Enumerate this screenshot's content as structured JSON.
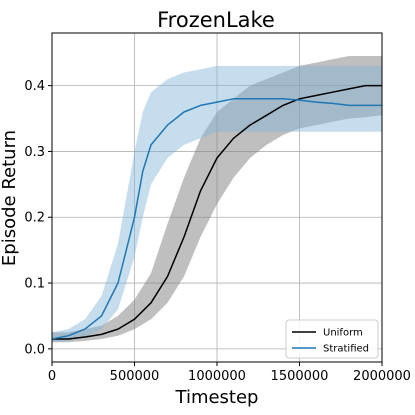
{
  "chart_data": {
    "type": "line",
    "title": "FrozenLake",
    "xlabel": "Timestep",
    "ylabel": "Episode Return",
    "xlim": [
      0,
      2000000
    ],
    "ylim": [
      -0.02,
      0.48
    ],
    "x_ticks": [
      0,
      500000,
      1000000,
      1500000,
      2000000
    ],
    "x_tick_labels": [
      "0",
      "500000",
      "1000000",
      "1500000",
      "2000000"
    ],
    "y_ticks": [
      0.0,
      0.1,
      0.2,
      0.3,
      0.4
    ],
    "y_tick_labels": [
      "0.0",
      "0.1",
      "0.2",
      "0.3",
      "0.4"
    ],
    "grid": true,
    "legend_position": "lower-right",
    "series": [
      {
        "name": "Uniform",
        "color": "#000000",
        "band_color": "#808080",
        "x": [
          0,
          100000,
          200000,
          300000,
          400000,
          500000,
          600000,
          700000,
          800000,
          900000,
          1000000,
          1100000,
          1200000,
          1300000,
          1400000,
          1500000,
          1600000,
          1700000,
          1800000,
          1900000,
          2000000
        ],
        "y": [
          0.015,
          0.015,
          0.018,
          0.022,
          0.03,
          0.045,
          0.07,
          0.11,
          0.17,
          0.24,
          0.29,
          0.32,
          0.34,
          0.355,
          0.37,
          0.38,
          0.385,
          0.39,
          0.395,
          0.4,
          0.4
        ],
        "lower": [
          0.01,
          0.01,
          0.012,
          0.015,
          0.02,
          0.03,
          0.045,
          0.07,
          0.11,
          0.17,
          0.22,
          0.26,
          0.29,
          0.31,
          0.325,
          0.335,
          0.34,
          0.345,
          0.35,
          0.352,
          0.355
        ],
        "upper": [
          0.025,
          0.025,
          0.03,
          0.035,
          0.05,
          0.075,
          0.115,
          0.19,
          0.26,
          0.32,
          0.36,
          0.38,
          0.4,
          0.41,
          0.42,
          0.43,
          0.435,
          0.44,
          0.445,
          0.445,
          0.445
        ]
      },
      {
        "name": "Stratified",
        "color": "#1f77b4",
        "band_color": "#7fb3d8",
        "x": [
          0,
          100000,
          200000,
          300000,
          400000,
          450000,
          500000,
          550000,
          600000,
          700000,
          800000,
          900000,
          1000000,
          1100000,
          1200000,
          1300000,
          1400000,
          1500000,
          1600000,
          1700000,
          1800000,
          1900000,
          2000000
        ],
        "y": [
          0.015,
          0.02,
          0.03,
          0.05,
          0.1,
          0.15,
          0.2,
          0.27,
          0.31,
          0.34,
          0.36,
          0.37,
          0.375,
          0.38,
          0.38,
          0.38,
          0.38,
          0.378,
          0.375,
          0.373,
          0.37,
          0.37,
          0.37
        ],
        "lower": [
          0.01,
          0.012,
          0.018,
          0.03,
          0.06,
          0.1,
          0.14,
          0.2,
          0.25,
          0.29,
          0.31,
          0.32,
          0.33,
          0.33,
          0.33,
          0.33,
          0.33,
          0.33,
          0.33,
          0.33,
          0.33,
          0.33,
          0.33
        ],
        "upper": [
          0.025,
          0.03,
          0.045,
          0.08,
          0.16,
          0.23,
          0.3,
          0.36,
          0.39,
          0.41,
          0.42,
          0.425,
          0.43,
          0.43,
          0.43,
          0.43,
          0.43,
          0.43,
          0.43,
          0.43,
          0.43,
          0.43,
          0.43
        ]
      }
    ]
  }
}
